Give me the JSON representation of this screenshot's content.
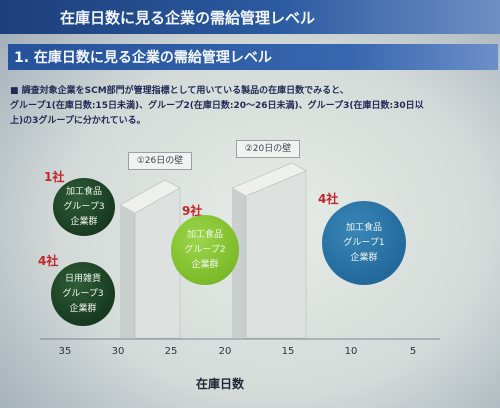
{
  "slide": {
    "title": "在庫日数に見る企業の需給管理レベル",
    "heading": "1. 在庫日数に見る企業の需給管理レベル",
    "body_lines": [
      "■ 調査対象企業をSCM部門が管理指標として用いている製品の在庫日数でみると、",
      "グループ1(在庫日数:15日未満)、グループ2(在庫日数:20～26日未満)、グループ3(在庫日数:30日以",
      "上)の3グループに分かれている。"
    ]
  },
  "walls": [
    {
      "label": "①26日の壁"
    },
    {
      "label": "②20日の壁"
    }
  ],
  "groups": [
    {
      "count": "1社",
      "lines": [
        "加工食品",
        "グループ3",
        "企業群"
      ],
      "color": "#183a20"
    },
    {
      "count": "4社",
      "lines": [
        "日用雑貨",
        "グループ3",
        "企業群"
      ],
      "color": "#183a20"
    },
    {
      "count": "9社",
      "lines": [
        "加工食品",
        "グループ2",
        "企業群"
      ],
      "color": "#7dbb2a"
    },
    {
      "count": "4社",
      "lines": [
        "加工食品",
        "グループ1",
        "企業群"
      ],
      "color": "#236a9c"
    }
  ],
  "axis": {
    "ticks": [
      "35",
      "30",
      "25",
      "20",
      "15",
      "10",
      "5"
    ],
    "label": "在庫日数"
  }
}
